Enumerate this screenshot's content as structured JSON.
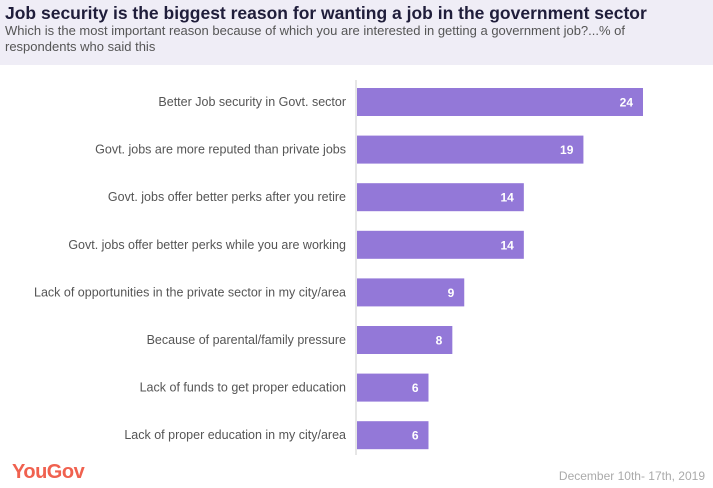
{
  "chart_data": {
    "type": "bar",
    "orientation": "horizontal",
    "title": "Job security is the biggest reason for wanting a job in the government sector",
    "subtitle": "Which is the most important reason because of which you are interested in getting a government job?...% of respondents who said this",
    "categories": [
      "Better Job security in Govt. sector",
      "Govt. jobs are more reputed than private jobs",
      "Govt. jobs offer better perks after you retire",
      "Govt. jobs offer better perks while you are working",
      "Lack of opportunities in the private sector in my city/area",
      "Because of parental/family pressure",
      "Lack of funds to get proper education",
      "Lack of proper education in my city/area"
    ],
    "values": [
      24,
      19,
      14,
      14,
      9,
      8,
      6,
      6
    ],
    "xlim": [
      0,
      24
    ],
    "grid": false,
    "bar_color": "#9378d8"
  },
  "footer": {
    "logo": "YouGov",
    "date": "December 10th- 17th, 2019"
  },
  "colors": {
    "header_bg": "#efedf6",
    "logo": "#f0614f"
  }
}
